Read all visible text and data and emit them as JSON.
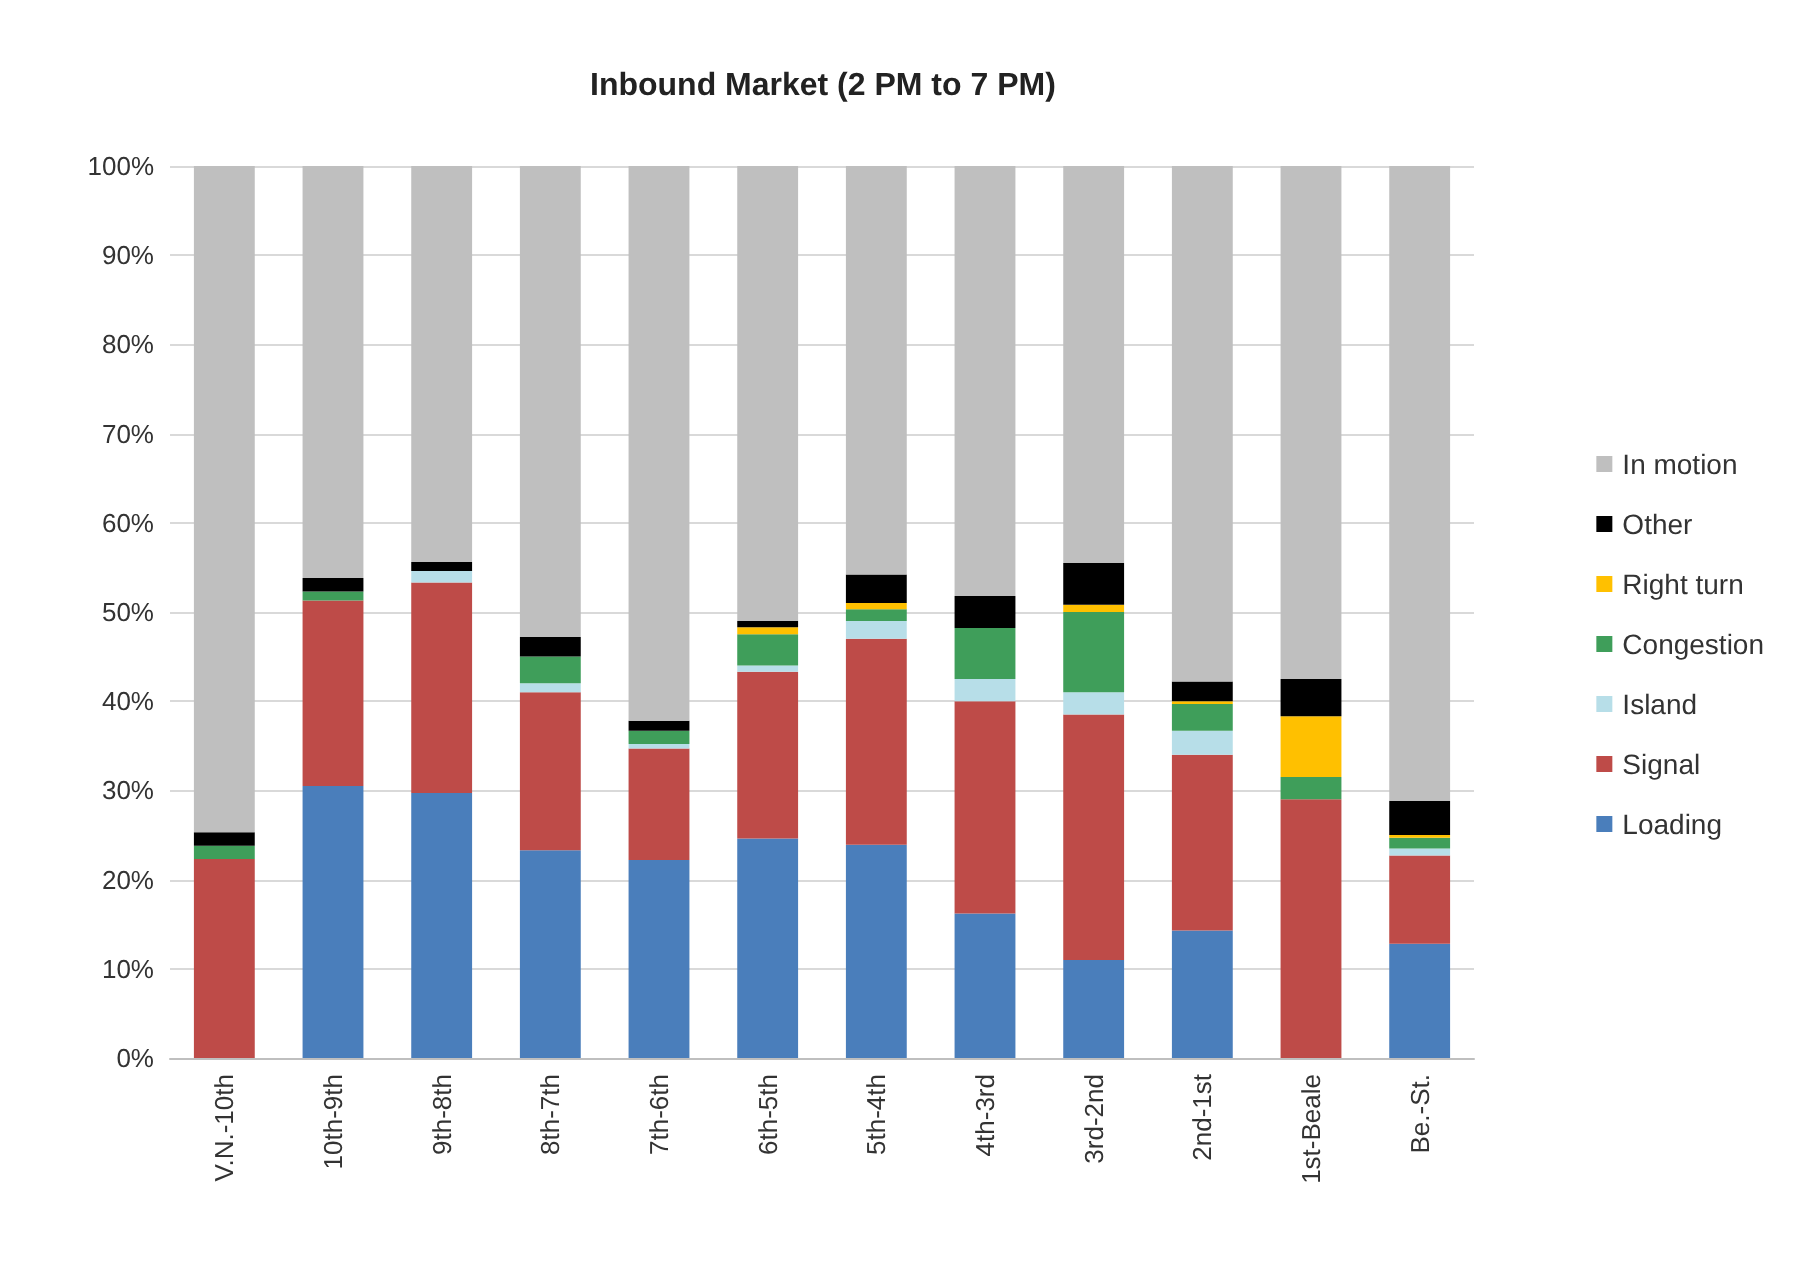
{
  "chart_data": {
    "type": "bar",
    "title": "Inbound Market (2 PM to 7 PM)",
    "stacked": true,
    "categories": [
      "V.N.-10th",
      "10th-9th",
      "9th-8th",
      "8th-7th",
      "7th-6th",
      "6th-5th",
      "5th-4th",
      "4th-3rd",
      "3rd-2nd",
      "2nd-1st",
      "1st-Beale",
      "Be.-St."
    ],
    "series": [
      {
        "name": "Loading",
        "color": "#4a7ebb",
        "values": [
          0,
          30.5,
          29.7,
          23.3,
          22.2,
          24.6,
          23.9,
          16.2,
          11,
          14.3,
          0,
          12.8
        ]
      },
      {
        "name": "Signal",
        "color": "#be4b48",
        "values": [
          22.3,
          20.8,
          23.6,
          17.7,
          12.5,
          18.7,
          23.1,
          23.8,
          27.5,
          19.7,
          29,
          9.9
        ]
      },
      {
        "name": "Island",
        "color": "#b7dee8",
        "values": [
          0,
          0,
          1.3,
          1,
          0.5,
          0.7,
          2,
          2.5,
          2.5,
          2.7,
          0,
          0.8
        ]
      },
      {
        "name": "Congestion",
        "color": "#3f9e5a",
        "values": [
          1.5,
          1,
          0,
          3,
          1.5,
          3.5,
          1.3,
          5.7,
          9,
          3,
          2.5,
          1.2
        ]
      },
      {
        "name": "Right turn",
        "color": "#ffc000",
        "values": [
          0,
          0,
          0,
          0,
          0,
          0.8,
          0.7,
          0,
          0.8,
          0.3,
          6.8,
          0.3
        ]
      },
      {
        "name": "Other",
        "color": "#000000",
        "values": [
          1.5,
          1.5,
          1,
          2.2,
          1.1,
          0.7,
          3.2,
          3.6,
          4.7,
          2.2,
          4.2,
          3.8
        ]
      },
      {
        "name": "In motion",
        "color": "#bfbfbf",
        "values": [
          74.7,
          46.2,
          44.4,
          52.8,
          62.2,
          51,
          45.8,
          48.2,
          44.5,
          57.8,
          57.5,
          71.2
        ]
      }
    ],
    "ylim": [
      0,
      100
    ],
    "yticks": [
      {
        "value": 0,
        "label": "0%"
      },
      {
        "value": 10,
        "label": "10%"
      },
      {
        "value": 20,
        "label": "20%"
      },
      {
        "value": 30,
        "label": "30%"
      },
      {
        "value": 40,
        "label": "40%"
      },
      {
        "value": 50,
        "label": "50%"
      },
      {
        "value": 60,
        "label": "60%"
      },
      {
        "value": 70,
        "label": "70%"
      },
      {
        "value": 80,
        "label": "80%"
      },
      {
        "value": 90,
        "label": "90%"
      },
      {
        "value": 100,
        "label": "100%"
      }
    ],
    "grid": "y",
    "legend": "right"
  }
}
